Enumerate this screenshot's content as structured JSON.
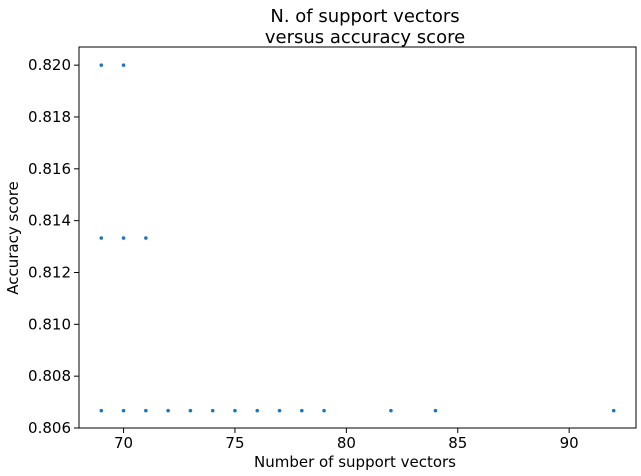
{
  "chart_data": {
    "type": "scatter",
    "title_lines": [
      "N. of support vectors",
      "versus accuracy score"
    ],
    "xlabel": "Number of support vectors",
    "ylabel": "Accuracy score",
    "xlim": [
      68,
      93
    ],
    "ylim": [
      0.806,
      0.8207
    ],
    "xticks": [
      70,
      75,
      80,
      85,
      90
    ],
    "yticks": [
      0.806,
      0.808,
      0.81,
      0.812,
      0.814,
      0.816,
      0.818,
      0.82
    ],
    "ytick_labels": [
      "0.806",
      "0.808",
      "0.810",
      "0.812",
      "0.814",
      "0.816",
      "0.818",
      "0.820"
    ],
    "marker_color": "#1f77b4",
    "grid": false,
    "points": [
      {
        "x": 69,
        "y": 0.82
      },
      {
        "x": 70,
        "y": 0.82
      },
      {
        "x": 69,
        "y": 0.81333
      },
      {
        "x": 70,
        "y": 0.81333
      },
      {
        "x": 71,
        "y": 0.81333
      },
      {
        "x": 69,
        "y": 0.80667
      },
      {
        "x": 70,
        "y": 0.80667
      },
      {
        "x": 71,
        "y": 0.80667
      },
      {
        "x": 72,
        "y": 0.80667
      },
      {
        "x": 73,
        "y": 0.80667
      },
      {
        "x": 74,
        "y": 0.80667
      },
      {
        "x": 75,
        "y": 0.80667
      },
      {
        "x": 76,
        "y": 0.80667
      },
      {
        "x": 77,
        "y": 0.80667
      },
      {
        "x": 78,
        "y": 0.80667
      },
      {
        "x": 79,
        "y": 0.80667
      },
      {
        "x": 82,
        "y": 0.80667
      },
      {
        "x": 84,
        "y": 0.80667
      },
      {
        "x": 92,
        "y": 0.80667
      }
    ]
  }
}
